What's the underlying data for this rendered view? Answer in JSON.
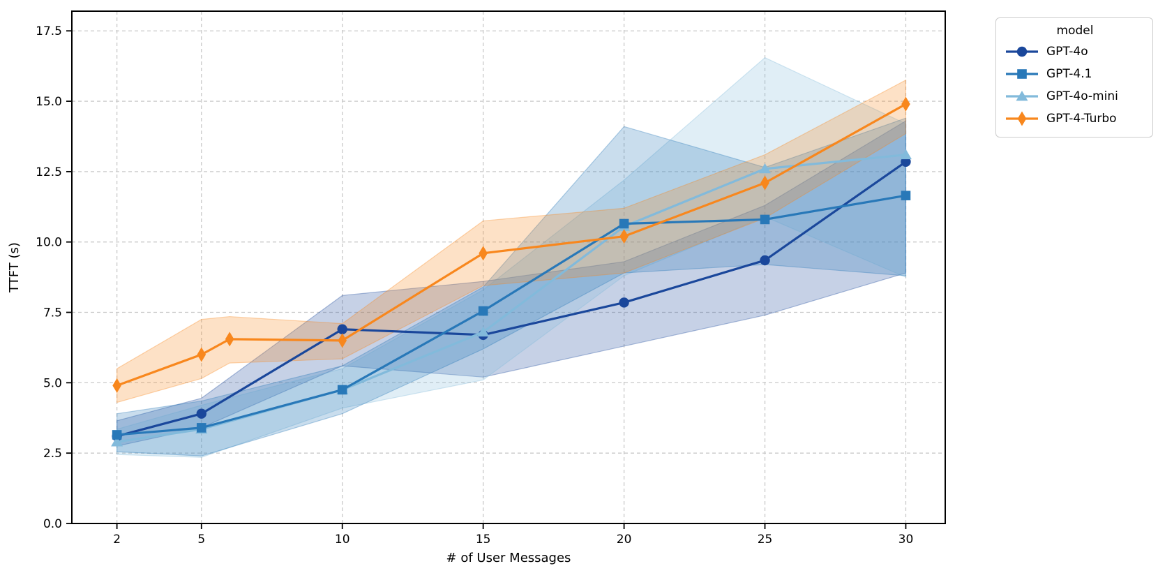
{
  "figure": {
    "background": "#ffffff",
    "frame_color": "#000000",
    "grid_color": "#c9c9c9"
  },
  "chart_data": {
    "type": "line",
    "title": "",
    "xlabel": "# of User Messages",
    "ylabel": "TTFT (s)",
    "xlim": [
      0.4,
      31.4
    ],
    "ylim": [
      0,
      18.2
    ],
    "grid": true,
    "grid_style": "dashed",
    "x_ticks": [
      2,
      5,
      10,
      15,
      20,
      25,
      30
    ],
    "x_tick_labels": [
      "2",
      "5",
      "10",
      "15",
      "20",
      "25",
      "30"
    ],
    "y_ticks": [
      0,
      2.5,
      5,
      7.5,
      10,
      12.5,
      15,
      17.5
    ],
    "y_tick_labels": [
      "0.0",
      "2.5",
      "5.0",
      "7.5",
      "10.0",
      "12.5",
      "15.0",
      "17.5"
    ],
    "legend": {
      "title": "model",
      "position": "outside-upper-right"
    },
    "band_opacity": 0.25,
    "draw_order": [
      0,
      2,
      1,
      3
    ],
    "series": [
      {
        "name": "GPT-4o",
        "marker": "circle",
        "color": "#1a479b",
        "x": [
          2,
          5,
          10,
          15,
          20,
          25,
          30
        ],
        "y": [
          3.1,
          3.9,
          6.9,
          6.7,
          7.85,
          9.35,
          12.85
        ],
        "band_low": [
          2.75,
          3.4,
          5.6,
          5.2,
          6.3,
          7.4,
          8.9
        ],
        "band_high": [
          3.65,
          4.45,
          8.1,
          8.6,
          9.3,
          11.3,
          14.3
        ]
      },
      {
        "name": "GPT-4.1",
        "marker": "square",
        "color": "#2878b8",
        "x": [
          2,
          5,
          10,
          15,
          20,
          25,
          30
        ],
        "y": [
          3.15,
          3.4,
          4.75,
          7.55,
          10.65,
          10.8,
          11.65
        ],
        "band_low": [
          2.55,
          2.4,
          3.9,
          6.2,
          8.9,
          9.2,
          8.8
        ],
        "band_high": [
          3.9,
          4.35,
          5.6,
          8.4,
          14.1,
          12.65,
          14.4
        ]
      },
      {
        "name": "GPT-4o-mini",
        "marker": "triangle",
        "color": "#82badb",
        "x": [
          2,
          5,
          10,
          15,
          20,
          25,
          30
        ],
        "y": [
          2.9,
          3.35,
          4.75,
          6.8,
          10.55,
          12.6,
          13.1
        ],
        "band_low": [
          2.45,
          2.35,
          4.1,
          5.1,
          8.8,
          10.9,
          8.75
        ],
        "band_high": [
          3.35,
          4.2,
          5.5,
          8.3,
          12.2,
          16.55,
          14.2
        ]
      },
      {
        "name": "GPT-4-Turbo",
        "marker": "diamond",
        "color": "#f8871d",
        "x": [
          2,
          5,
          6,
          10,
          15,
          20,
          25,
          30
        ],
        "y": [
          4.9,
          6.0,
          6.55,
          6.5,
          9.6,
          10.2,
          12.1,
          14.9
        ],
        "band_low": [
          4.3,
          5.15,
          5.7,
          5.85,
          8.45,
          8.9,
          10.85,
          13.85
        ],
        "band_high": [
          5.5,
          7.25,
          7.35,
          7.1,
          10.75,
          11.2,
          13.1,
          15.75
        ]
      }
    ]
  }
}
